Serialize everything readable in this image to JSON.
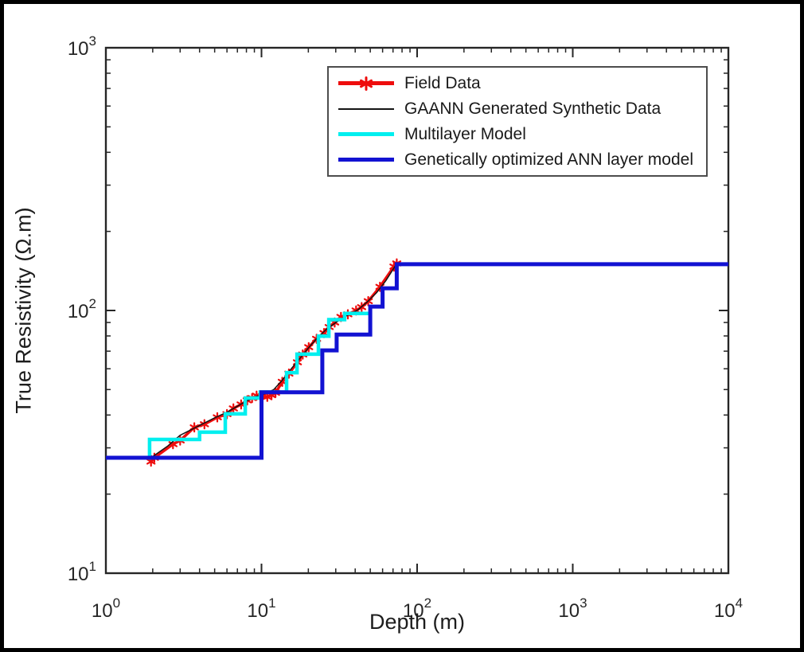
{
  "chart_data": {
    "type": "line",
    "title": "",
    "xlabel": "Depth (m)",
    "ylabel": "True Resistivity (Ω.m)",
    "x_scale": "log",
    "y_scale": "log",
    "xlim": [
      1,
      10000
    ],
    "ylim": [
      10,
      1000
    ],
    "grid": false,
    "x_ticks": [
      {
        "mantissa": "10",
        "exponent": "0",
        "value": 1
      },
      {
        "mantissa": "10",
        "exponent": "1",
        "value": 10
      },
      {
        "mantissa": "10",
        "exponent": "2",
        "value": 100
      },
      {
        "mantissa": "10",
        "exponent": "3",
        "value": 1000
      },
      {
        "mantissa": "10",
        "exponent": "4",
        "value": 10000
      }
    ],
    "y_ticks": [
      {
        "mantissa": "10",
        "exponent": "1",
        "value": 10
      },
      {
        "mantissa": "10",
        "exponent": "2",
        "value": 100
      },
      {
        "mantissa": "10",
        "exponent": "3",
        "value": 1000
      }
    ],
    "axis_color": "#262626",
    "background": "#ffffff",
    "frame_color": "#000000",
    "legend": {
      "position": "top-inside",
      "border_color": "#4d4d4d"
    },
    "series": [
      {
        "name": "Field Data",
        "color": "#ee0d0d",
        "style": "line-with-asterisk-markers",
        "line_width": 3.5,
        "points": [
          [
            1.95,
            26.6
          ],
          [
            2.05,
            27.5
          ],
          [
            2.7,
            31
          ],
          [
            3.0,
            32
          ],
          [
            3.7,
            35.9
          ],
          [
            4.3,
            36.9
          ],
          [
            5.2,
            39.2
          ],
          [
            6.0,
            40.3
          ],
          [
            6.6,
            42.4
          ],
          [
            7.4,
            43.9
          ],
          [
            8.1,
            45.5
          ],
          [
            8.7,
            46.4
          ],
          [
            9.3,
            47.4
          ],
          [
            10.1,
            47.2
          ],
          [
            10.9,
            46.9
          ],
          [
            11.6,
            47.6
          ],
          [
            12.3,
            48.6
          ],
          [
            13.6,
            53.5
          ],
          [
            15.0,
            57.5
          ],
          [
            17.0,
            63.5
          ],
          [
            18.4,
            68
          ],
          [
            20.1,
            72.5
          ],
          [
            22.6,
            78
          ],
          [
            25.2,
            82
          ],
          [
            27.2,
            86.5
          ],
          [
            29.5,
            90
          ],
          [
            32.4,
            94.5
          ],
          [
            35.9,
            96.7
          ],
          [
            40.5,
            100
          ],
          [
            44,
            103
          ],
          [
            48.5,
            108.5
          ],
          [
            57.7,
            123
          ],
          [
            71,
            147
          ],
          [
            74,
            151
          ]
        ]
      },
      {
        "name": "GAANN Generated Synthetic Data",
        "color": "#141414",
        "style": "thin-line",
        "line_width": 1.5,
        "points": [
          [
            1.95,
            27.5
          ],
          [
            2.5,
            30.5
          ],
          [
            3,
            33.5
          ],
          [
            4,
            36.5
          ],
          [
            5,
            39
          ],
          [
            6,
            41
          ],
          [
            7,
            43.2
          ],
          [
            8,
            45.2
          ],
          [
            9,
            46.8
          ],
          [
            10,
            47.8
          ],
          [
            11,
            48.6
          ],
          [
            12,
            50
          ],
          [
            13.5,
            54
          ],
          [
            15,
            58.5
          ],
          [
            17,
            64
          ],
          [
            20,
            72
          ],
          [
            23,
            79
          ],
          [
            26,
            84.5
          ],
          [
            30,
            90
          ],
          [
            34,
            94.5
          ],
          [
            38,
            97.5
          ],
          [
            42,
            101
          ],
          [
            48,
            108
          ],
          [
            55,
            117
          ],
          [
            63,
            130
          ],
          [
            73,
            149
          ]
        ]
      },
      {
        "name": "Multilayer Model",
        "color": "#00efef",
        "style": "step-line",
        "line_width": 4.5,
        "points": [
          [
            1.91,
            27
          ],
          [
            1.91,
            32.3
          ],
          [
            4.0,
            32.3
          ],
          [
            4.0,
            34.4
          ],
          [
            5.85,
            34.4
          ],
          [
            5.85,
            40.4
          ],
          [
            7.86,
            40.4
          ],
          [
            7.86,
            46.4
          ],
          [
            9.83,
            46.4
          ],
          [
            9.83,
            48.9
          ],
          [
            14.5,
            48.9
          ],
          [
            14.5,
            58
          ],
          [
            16.9,
            58
          ],
          [
            16.9,
            68.2
          ],
          [
            23.2,
            68.2
          ],
          [
            23.2,
            79.8
          ],
          [
            27.1,
            79.8
          ],
          [
            27.1,
            92.3
          ],
          [
            34.2,
            92.3
          ],
          [
            34.2,
            97.4
          ],
          [
            49,
            97.4
          ]
        ]
      },
      {
        "name": "Genetically optimized ANN layer model",
        "color": "#1212d2",
        "style": "step-line",
        "line_width": 5,
        "points": [
          [
            1,
            27.5
          ],
          [
            10,
            27.5
          ],
          [
            10,
            48.8
          ],
          [
            24.6,
            48.8
          ],
          [
            24.6,
            70.5
          ],
          [
            30.4,
            70.5
          ],
          [
            30.4,
            81
          ],
          [
            50,
            81
          ],
          [
            50,
            103.5
          ],
          [
            60,
            103.5
          ],
          [
            60,
            121.5
          ],
          [
            74,
            121.5
          ],
          [
            74,
            150
          ],
          [
            10000,
            150
          ]
        ]
      }
    ]
  }
}
